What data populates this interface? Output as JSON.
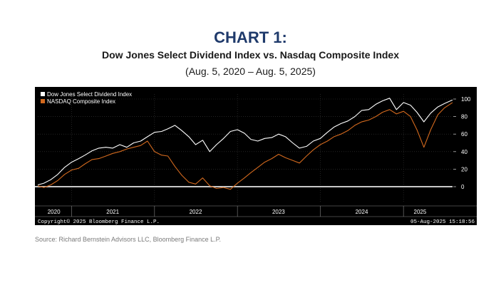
{
  "header": {
    "chart_number": "CHART 1:",
    "title": "Dow Jones Select Dividend Index vs. Nasdaq Composite Index",
    "subtitle": "(Aug. 5, 2020 – Aug. 5, 2025)"
  },
  "footer": {
    "copyright": "Copyright© 2025 Bloomberg Finance L.P.",
    "timestamp": "05-Aug-2025 15:18:56",
    "source": "Source: Richard Bernstein Advisors LLC, Bloomberg Finance L.P."
  },
  "colors": {
    "background": "#000000",
    "dividend": "#ffffff",
    "nasdaq": "#d2691e",
    "zero_line": "#c8c8c8",
    "title": "#1f3a6b"
  },
  "chart_data": {
    "type": "line",
    "ylim": [
      -5,
      105
    ],
    "y_ticks": [
      0,
      20,
      40,
      60,
      80,
      100
    ],
    "y_tick_labels": [
      "0",
      "20",
      "40",
      "60",
      "80",
      "100"
    ],
    "x_tick_labels": [
      "2020",
      "2021",
      "2022",
      "2023",
      "2024",
      "2025"
    ],
    "x_tick_dates": [
      "2020-10-15",
      "2021-07-01",
      "2022-07-01",
      "2023-07-01",
      "2024-07-01",
      "2025-03-15"
    ],
    "x_boundaries": [
      "2021-01-01",
      "2022-01-01",
      "2023-01-01",
      "2024-01-01",
      "2025-01-01"
    ],
    "xlim": [
      "2020-08-05",
      "2025-08-05"
    ],
    "legend_position": "top-left",
    "zero_line": true,
    "grid": true,
    "series": [
      {
        "name": "Dow Jones Select Dividend Index",
        "x": [
          "2020-08-05",
          "2020-09-01",
          "2020-10-01",
          "2020-11-01",
          "2020-12-01",
          "2021-01-01",
          "2021-02-01",
          "2021-03-01",
          "2021-04-01",
          "2021-05-01",
          "2021-06-01",
          "2021-07-01",
          "2021-08-01",
          "2021-09-01",
          "2021-10-01",
          "2021-11-01",
          "2021-12-01",
          "2022-01-01",
          "2022-02-01",
          "2022-03-01",
          "2022-04-01",
          "2022-05-01",
          "2022-06-01",
          "2022-07-01",
          "2022-08-01",
          "2022-09-01",
          "2022-10-01",
          "2022-11-01",
          "2022-12-01",
          "2023-01-01",
          "2023-02-01",
          "2023-03-01",
          "2023-04-01",
          "2023-05-01",
          "2023-06-01",
          "2023-07-01",
          "2023-08-01",
          "2023-09-01",
          "2023-10-01",
          "2023-11-01",
          "2023-12-01",
          "2024-01-01",
          "2024-02-01",
          "2024-03-01",
          "2024-04-01",
          "2024-05-01",
          "2024-06-01",
          "2024-07-01",
          "2024-08-01",
          "2024-09-01",
          "2024-10-01",
          "2024-11-01",
          "2024-12-01",
          "2025-01-01",
          "2025-02-01",
          "2025-03-01",
          "2025-04-01",
          "2025-05-01",
          "2025-06-01",
          "2025-07-01",
          "2025-08-05"
        ],
        "values": [
          2,
          4,
          8,
          14,
          22,
          28,
          32,
          36,
          41,
          44,
          45,
          44,
          48,
          45,
          50,
          52,
          57,
          62,
          63,
          66,
          70,
          64,
          57,
          48,
          53,
          40,
          48,
          55,
          63,
          65,
          61,
          54,
          52,
          55,
          56,
          60,
          57,
          50,
          44,
          46,
          52,
          55,
          62,
          68,
          72,
          75,
          80,
          87,
          88,
          94,
          98,
          101,
          88,
          96,
          93,
          85,
          74,
          84,
          91,
          95,
          99
        ],
        "values_unit": "Index (rebased)"
      },
      {
        "name": "NASDAQ Composite Index",
        "x": [
          "2020-08-05",
          "2020-09-01",
          "2020-10-01",
          "2020-11-01",
          "2020-12-01",
          "2021-01-01",
          "2021-02-01",
          "2021-03-01",
          "2021-04-01",
          "2021-05-01",
          "2021-06-01",
          "2021-07-01",
          "2021-08-01",
          "2021-09-01",
          "2021-10-01",
          "2021-11-01",
          "2021-12-01",
          "2022-01-01",
          "2022-02-01",
          "2022-03-01",
          "2022-04-01",
          "2022-05-01",
          "2022-06-01",
          "2022-07-01",
          "2022-08-01",
          "2022-09-01",
          "2022-10-01",
          "2022-11-01",
          "2022-12-01",
          "2023-01-01",
          "2023-02-01",
          "2023-03-01",
          "2023-04-01",
          "2023-05-01",
          "2023-06-01",
          "2023-07-01",
          "2023-08-01",
          "2023-09-01",
          "2023-10-01",
          "2023-11-01",
          "2023-12-01",
          "2024-01-01",
          "2024-02-01",
          "2024-03-01",
          "2024-04-01",
          "2024-05-01",
          "2024-06-01",
          "2024-07-01",
          "2024-08-01",
          "2024-09-01",
          "2024-10-01",
          "2024-11-01",
          "2024-12-01",
          "2025-01-01",
          "2025-02-01",
          "2025-03-01",
          "2025-04-01",
          "2025-05-01",
          "2025-06-01",
          "2025-07-01",
          "2025-08-05"
        ],
        "values": [
          1,
          -1,
          2,
          7,
          14,
          19,
          21,
          26,
          31,
          32,
          35,
          38,
          40,
          43,
          45,
          47,
          52,
          40,
          36,
          35,
          23,
          13,
          5,
          3,
          10,
          1,
          -2,
          -1,
          -3,
          4,
          10,
          16,
          22,
          28,
          32,
          37,
          33,
          30,
          27,
          35,
          42,
          48,
          52,
          57,
          60,
          64,
          70,
          74,
          76,
          80,
          85,
          88,
          83,
          86,
          80,
          65,
          45,
          65,
          82,
          90,
          96
        ],
        "values_unit": "Index (rebased)"
      }
    ]
  }
}
